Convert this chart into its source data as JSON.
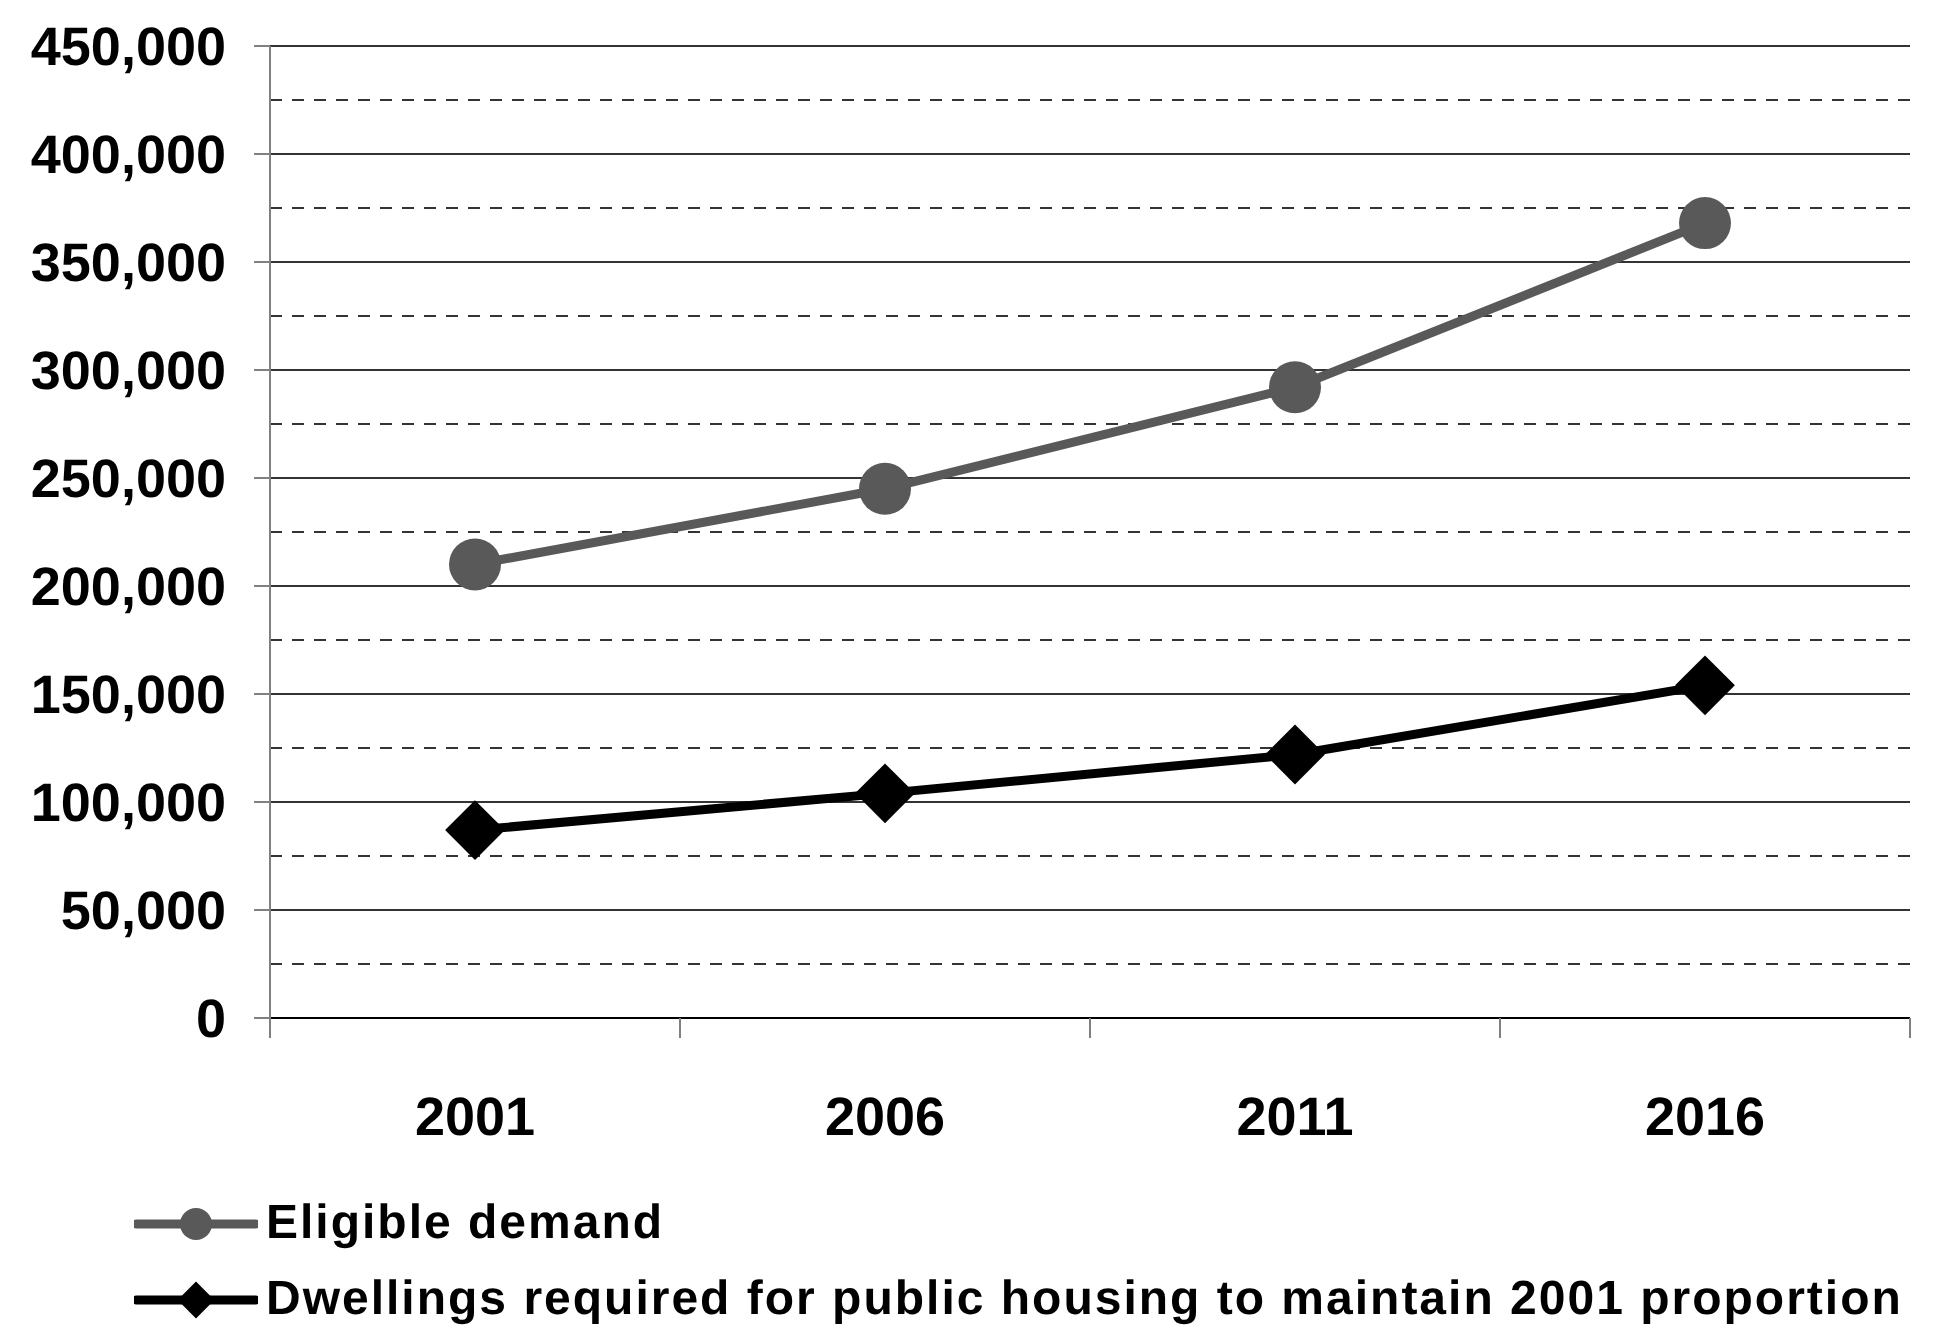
{
  "chart_data": {
    "type": "line",
    "categories": [
      "2001",
      "2006",
      "2011",
      "2016"
    ],
    "series": [
      {
        "name": "Eligible demand",
        "color": "#595959",
        "marker": "circle",
        "values": [
          210000,
          245000,
          292000,
          368000
        ]
      },
      {
        "name": "Dwellings required for public housing to maintain 2001 proportion",
        "color": "#000000",
        "marker": "diamond",
        "values": [
          87000,
          104000,
          122000,
          154000
        ]
      }
    ],
    "ylim": [
      0,
      450000
    ],
    "yticks": [
      0,
      {
        "value": 25000,
        "label": null
      },
      {
        "value": 50000,
        "label": "50,000"
      },
      {
        "value": 75000,
        "label": null
      },
      {
        "value": 100000,
        "label": "100,000"
      },
      {
        "value": 125000,
        "label": null
      },
      {
        "value": 150000,
        "label": "150,000"
      },
      {
        "value": 175000,
        "label": null
      },
      {
        "value": 200000,
        "label": "200,000"
      },
      {
        "value": 225000,
        "label": null
      },
      {
        "value": 250000,
        "label": "250,000"
      },
      {
        "value": 275000,
        "label": null
      },
      {
        "value": 300000,
        "label": "300,000"
      },
      {
        "value": 325000,
        "label": null
      },
      {
        "value": 350000,
        "label": "350,000"
      },
      {
        "value": 375000,
        "label": null
      },
      {
        "value": 400000,
        "label": "400,000"
      },
      {
        "value": 425000,
        "label": null
      },
      {
        "value": 450000,
        "label": "450,000"
      }
    ],
    "grid": "y",
    "legend": "bottom"
  }
}
